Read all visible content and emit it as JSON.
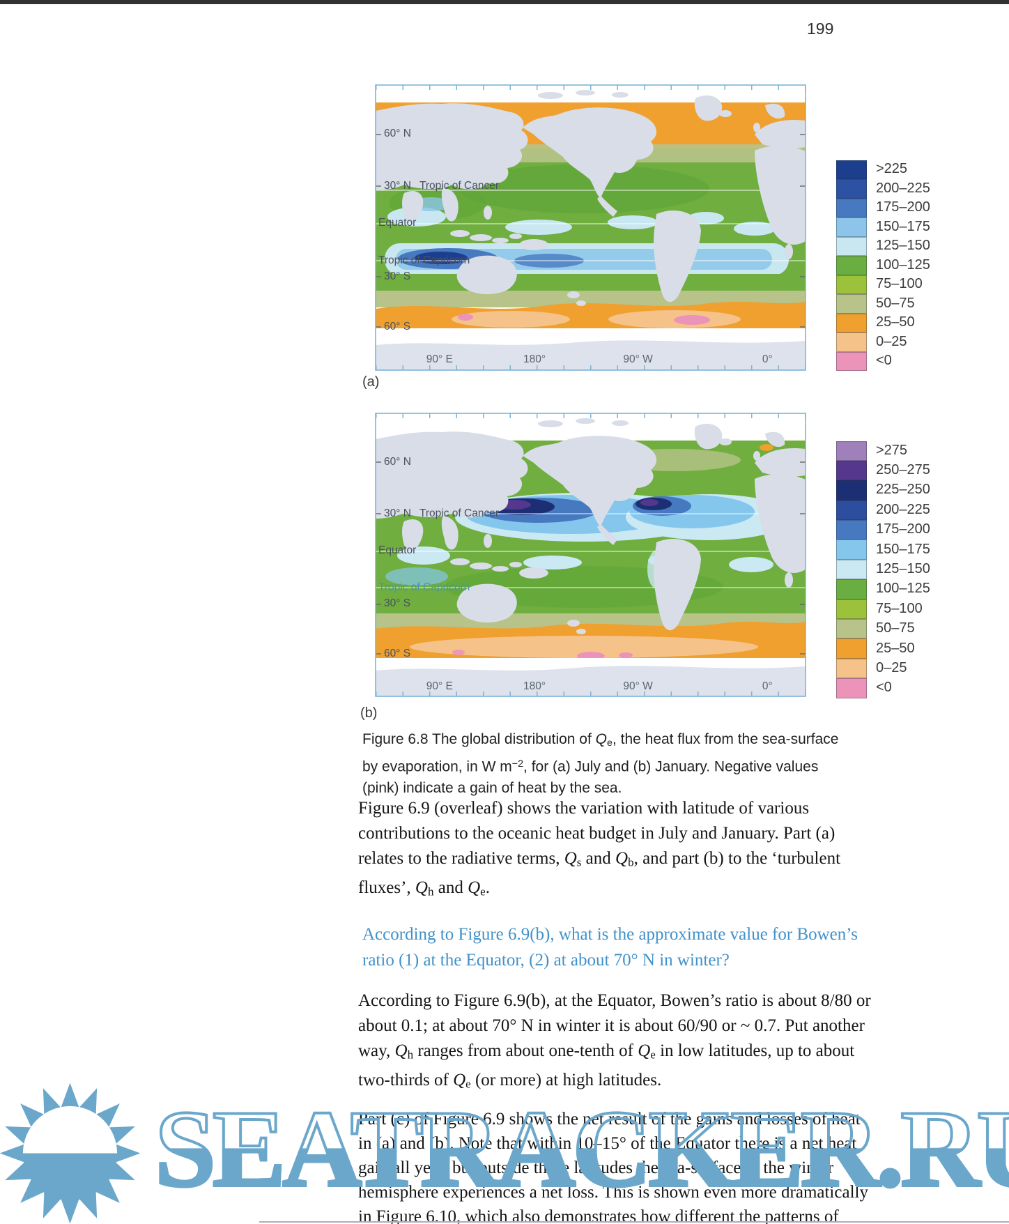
{
  "page": {
    "number": "199"
  },
  "figure": {
    "axis": {
      "lat": [
        "60° N",
        "30° N",
        "Tropic of Cancer",
        "Equator",
        "Tropic of Capricorn",
        "30° S",
        "60° S"
      ],
      "lon": [
        "90° E",
        "180°",
        "90° W",
        "0°"
      ]
    },
    "map_a": {
      "sublabel": "(a)",
      "legend": [
        {
          "label": ">225",
          "color": "#1c3e8e"
        },
        {
          "label": "200–225",
          "color": "#2d52a3"
        },
        {
          "label": "175–200",
          "color": "#4679c0"
        },
        {
          "label": "150–175",
          "color": "#8cc5e9"
        },
        {
          "label": "125–150",
          "color": "#c8e7f1"
        },
        {
          "label": "100–125",
          "color": "#6aae41"
        },
        {
          "label": "75–100",
          "color": "#9cc23c"
        },
        {
          "label": "50–75",
          "color": "#b7c388"
        },
        {
          "label": "25–50",
          "color": "#efa02f"
        },
        {
          "label": "0–25",
          "color": "#f5c289"
        },
        {
          "label": "<0",
          "color": "#ec93b9"
        }
      ]
    },
    "map_b": {
      "sublabel": "(b)",
      "legend": [
        {
          "label": ">275",
          "color": "#9f80ba"
        },
        {
          "label": "250–275",
          "color": "#55378d"
        },
        {
          "label": "225–250",
          "color": "#1c2f74"
        },
        {
          "label": "200–225",
          "color": "#2d4d9e"
        },
        {
          "label": "175–200",
          "color": "#4679c0"
        },
        {
          "label": "150–175",
          "color": "#85c6ed"
        },
        {
          "label": "125–150",
          "color": "#cbe9f2"
        },
        {
          "label": "100–125",
          "color": "#6aae41"
        },
        {
          "label": "75–100",
          "color": "#9cc23c"
        },
        {
          "label": "50–75",
          "color": "#b7c388"
        },
        {
          "label": "25–50",
          "color": "#efa02f"
        },
        {
          "label": "0–25",
          "color": "#f5c289"
        },
        {
          "label": "<0",
          "color": "#ec93b9"
        }
      ]
    },
    "caption": [
      {
        "t": "Figure 6.8   The global distribution of "
      },
      {
        "t": "Q",
        "c": "i"
      },
      {
        "t": "e",
        "c": "sub"
      },
      {
        "t": ", the heat flux from the sea-surface by evaporation, in W m"
      },
      {
        "t": "−2",
        "c": "sup"
      },
      {
        "t": ", for (a) July and (b) January. Negative values (pink) indicate a gain of heat by the sea."
      }
    ]
  },
  "content": {
    "para1": [
      {
        "t": "Figure 6.9 (overleaf) shows the variation with latitude of various contributions to the oceanic heat budget in July and January. Part (a) relates to the radiative terms, "
      },
      {
        "t": "Q",
        "c": "i"
      },
      {
        "t": "s",
        "c": "sub"
      },
      {
        "t": " and "
      },
      {
        "t": "Q",
        "c": "i"
      },
      {
        "t": "b",
        "c": "sub"
      },
      {
        "t": ", and part (b) to the ‘turbulent fluxes’, "
      },
      {
        "t": "Q",
        "c": "i"
      },
      {
        "t": "h",
        "c": "sub"
      },
      {
        "t": " and "
      },
      {
        "t": "Q",
        "c": "i"
      },
      {
        "t": "e",
        "c": "sub"
      },
      {
        "t": "."
      }
    ],
    "question": "According to Figure 6.9(b), what is the approximate value for Bowen’s ratio (1) at the Equator, (2) at about 70° N in winter?",
    "question_color": "#4191c9",
    "answer": [
      {
        "t": "According to Figure 6.9(b), at the Equator, Bowen’s ratio is about 8/80 or about 0.1; at about 70° N in winter it is about 60/90 or ~ 0.7. Put another way, "
      },
      {
        "t": "Q",
        "c": "i"
      },
      {
        "t": "h",
        "c": "sub"
      },
      {
        "t": " ranges from about one-tenth of "
      },
      {
        "t": "Q",
        "c": "i"
      },
      {
        "t": "e",
        "c": "sub"
      },
      {
        "t": " in low latitudes, up to about two-thirds of "
      },
      {
        "t": "Q",
        "c": "i"
      },
      {
        "t": "e",
        "c": "sub"
      },
      {
        "t": " (or more) at high latitudes."
      }
    ],
    "para3": "Part (c) of Figure 6.9 shows the net result of the gains and losses of heat in (a) and (b). Note that within 10–15° of the Equator there is a net heat gain all year, but outside these latitudes the sea-surface in the winter hemisphere experiences a net loss. This is shown even more dramatically in Figure 6.10, which also demonstrates how different the patterns of winter heat loss are in the two hemispheres."
  },
  "watermark": {
    "text": "SEATRACKER.RU",
    "color": "#6ba7cb"
  }
}
